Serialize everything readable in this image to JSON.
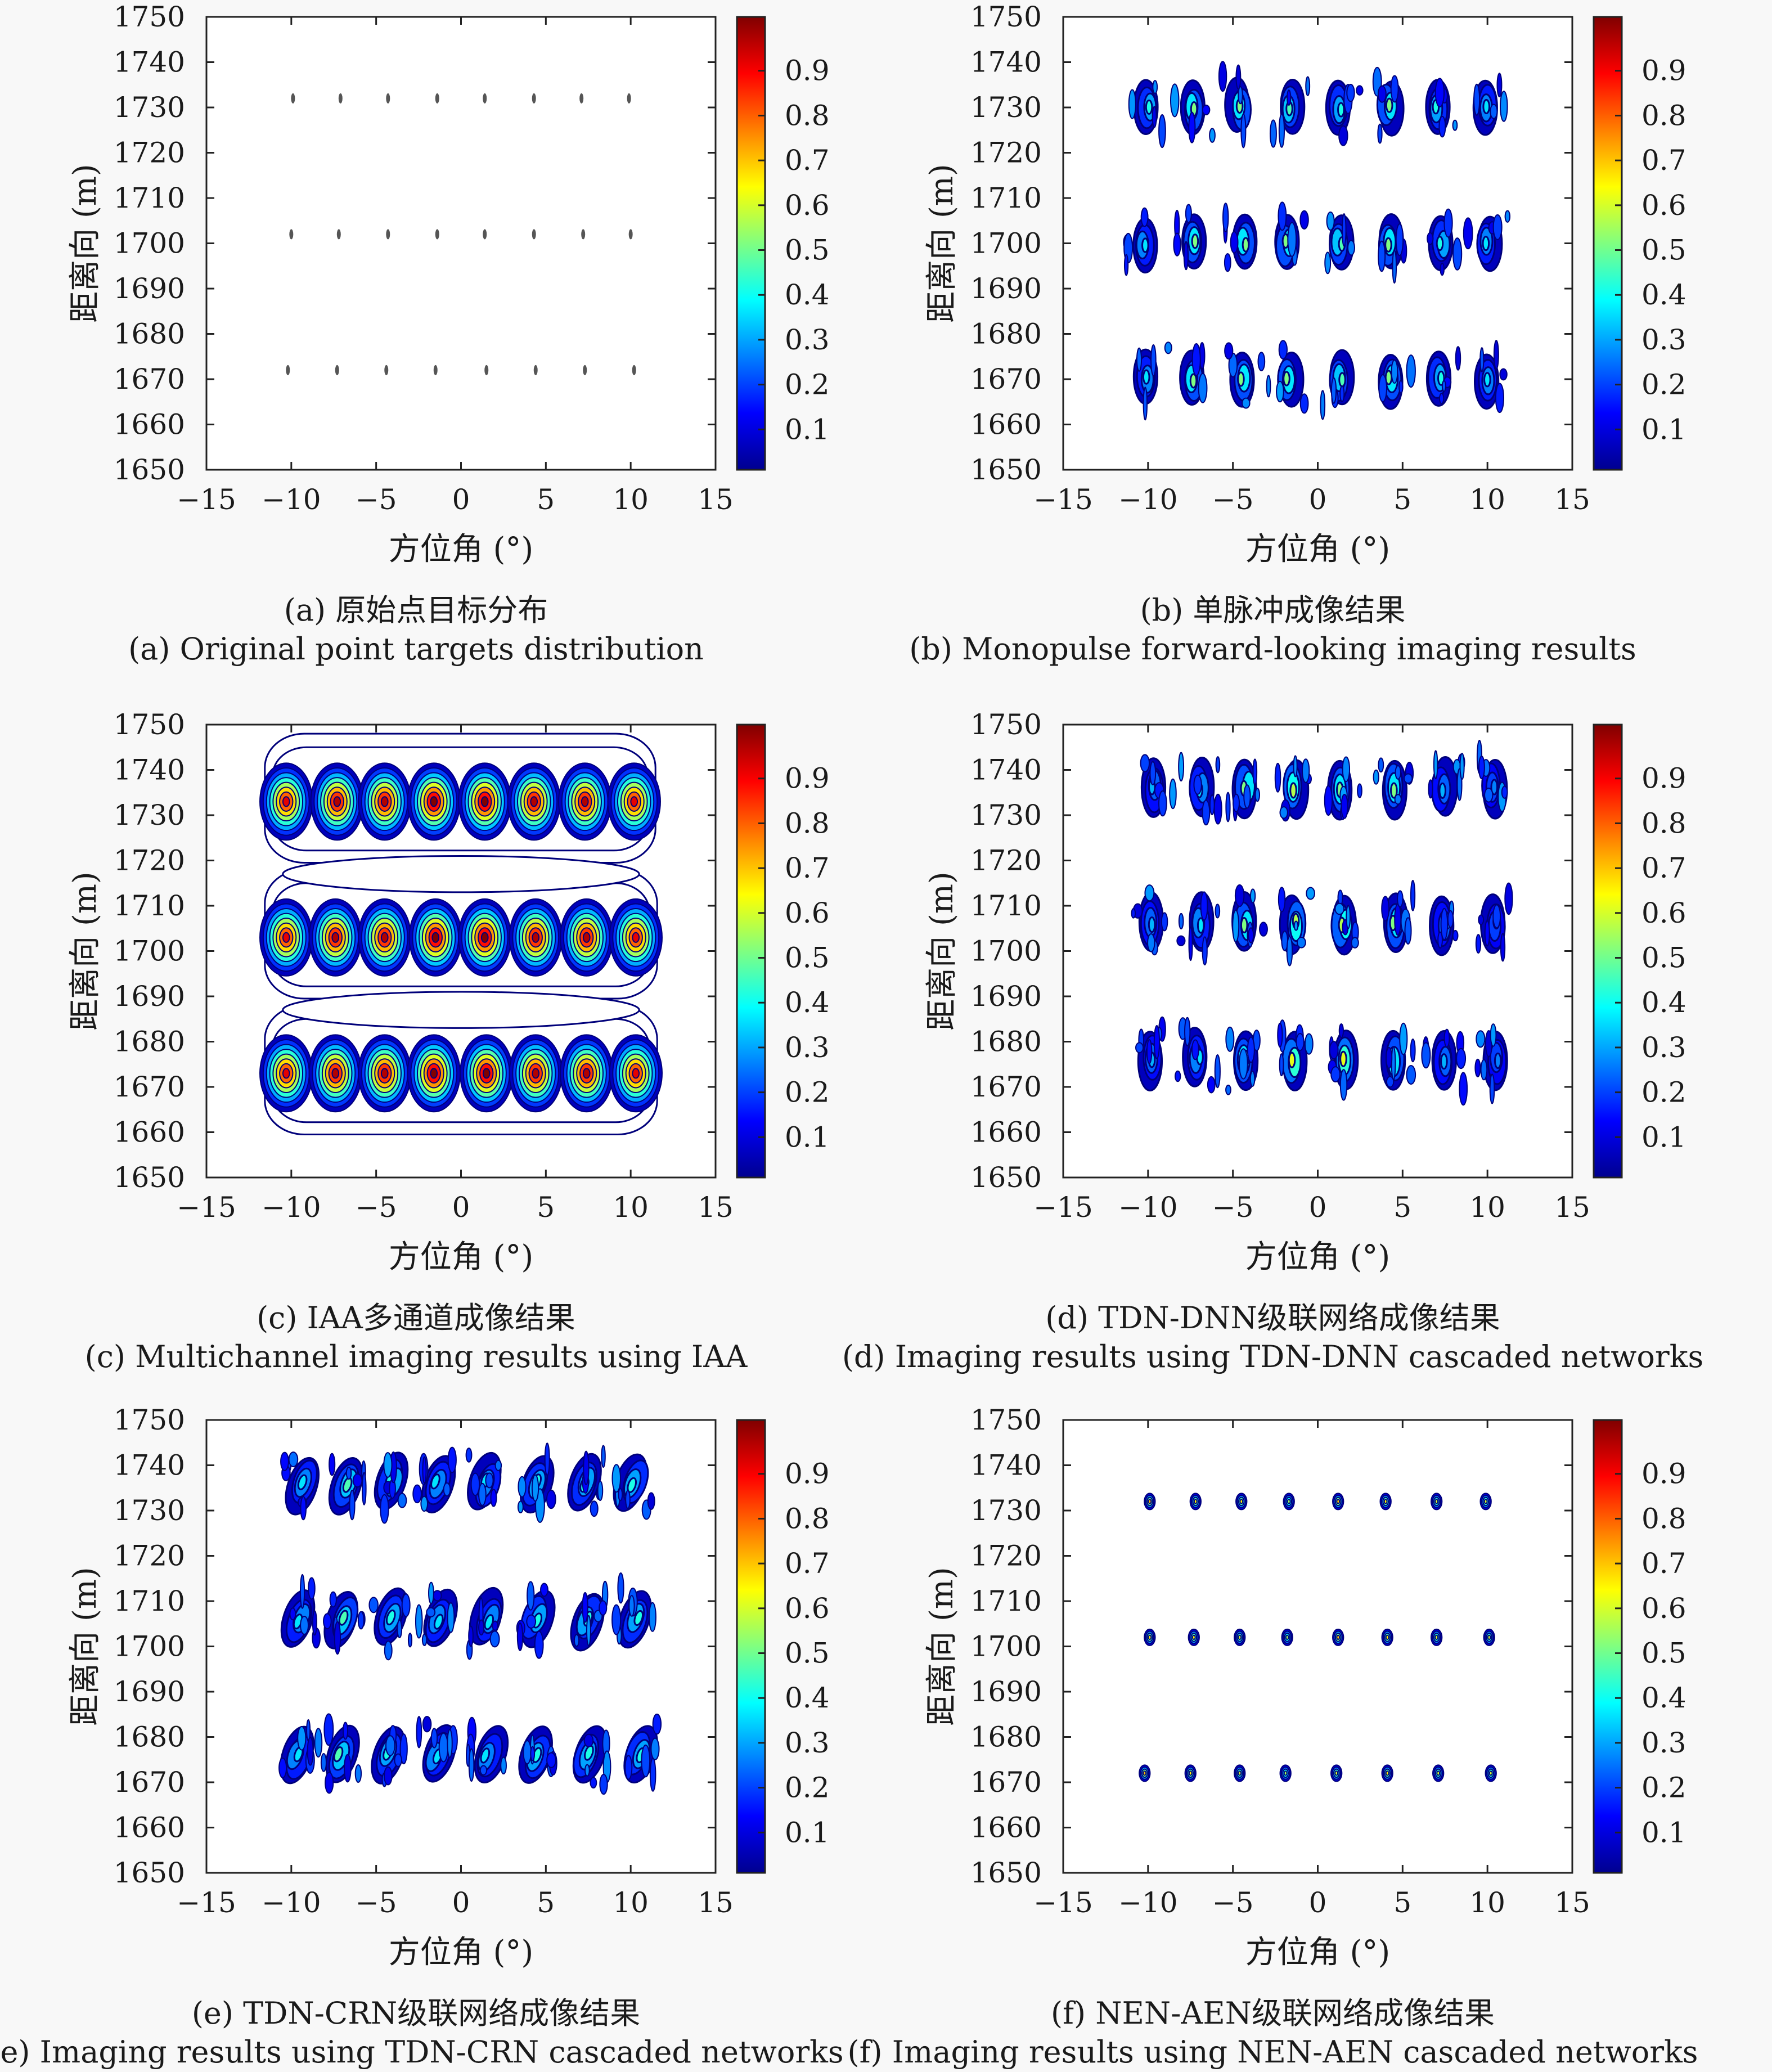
{
  "figure": {
    "colormap": [
      "#00008f",
      "#0000ff",
      "#0080ff",
      "#00ffff",
      "#80ff80",
      "#ffff00",
      "#ff8000",
      "#ff0000",
      "#800000"
    ],
    "contour_color": "#00007a"
  },
  "chart_data": [
    {
      "type": "scatter",
      "caption_cn": "(a) 原始点目标分布",
      "caption_en": "(a) Original point targets distribution",
      "xlabel": "方位角 (°)",
      "ylabel": "距离向 (m)",
      "xlim": [
        -15,
        15
      ],
      "ylim": [
        1650,
        1750
      ],
      "xticks": [
        "−15",
        "−10",
        "−5",
        "0",
        "5",
        "10",
        "15"
      ],
      "yticks": [
        "1650",
        "1660",
        "1670",
        "1680",
        "1690",
        "1700",
        "1710",
        "1720",
        "1730",
        "1740",
        "1750"
      ],
      "colorbar_ticks": [
        "0.1",
        "0.2",
        "0.3",
        "0.4",
        "0.5",
        "0.6",
        "0.7",
        "0.8",
        "0.9"
      ],
      "style": "point",
      "series": [
        {
          "y": 1732,
          "x": [
            -9.9,
            -7.1,
            -4.3,
            -1.4,
            1.4,
            4.3,
            7.1,
            9.9
          ]
        },
        {
          "y": 1702,
          "x": [
            -10.0,
            -7.2,
            -4.3,
            -1.4,
            1.4,
            4.3,
            7.2,
            10.0
          ]
        },
        {
          "y": 1672,
          "x": [
            -10.2,
            -7.3,
            -4.4,
            -1.5,
            1.5,
            4.4,
            7.3,
            10.2
          ]
        }
      ]
    },
    {
      "type": "heatmap",
      "caption_cn": "(b) 单脉冲成像结果",
      "caption_en": "(b) Monopulse forward-looking imaging results",
      "xlabel": "方位角 (°)",
      "ylabel": "距离向 (m)",
      "xlim": [
        -15,
        15
      ],
      "ylim": [
        1650,
        1750
      ],
      "xticks": [
        "−15",
        "−10",
        "−5",
        "0",
        "5",
        "10",
        "15"
      ],
      "yticks": [
        "1650",
        "1660",
        "1670",
        "1680",
        "1690",
        "1700",
        "1710",
        "1720",
        "1730",
        "1740",
        "1750"
      ],
      "colorbar_ticks": [
        "0.1",
        "0.2",
        "0.3",
        "0.4",
        "0.5",
        "0.6",
        "0.7",
        "0.8",
        "0.9"
      ],
      "style": "monopulse",
      "series": [
        {
          "y": 1730,
          "x": [
            -10.0,
            -7.3,
            -4.6,
            -1.6,
            1.3,
            4.2,
            7.1,
            10.0
          ],
          "peak": [
            0.35,
            0.45,
            0.45,
            0.4,
            0.35,
            0.45,
            0.35,
            0.3
          ]
        },
        {
          "y": 1700,
          "x": [
            -10.3,
            -7.3,
            -4.4,
            -1.8,
            1.3,
            4.2,
            7.3,
            10.0
          ],
          "peak": [
            0.3,
            0.45,
            0.45,
            0.45,
            0.4,
            0.45,
            0.35,
            0.3
          ]
        },
        {
          "y": 1670,
          "x": [
            -10.0,
            -7.3,
            -4.5,
            -1.7,
            1.4,
            4.3,
            7.2,
            10.0
          ],
          "peak": [
            0.3,
            0.45,
            0.45,
            0.45,
            0.4,
            0.45,
            0.35,
            0.3
          ]
        }
      ]
    },
    {
      "type": "heatmap",
      "caption_cn": "(c) IAA多通道成像结果",
      "caption_en": "(c) Multichannel imaging results using IAA",
      "xlabel": "方位角 (°)",
      "ylabel": "距离向 (m)",
      "xlim": [
        -15,
        15
      ],
      "ylim": [
        1650,
        1750
      ],
      "xticks": [
        "−15",
        "−10",
        "−5",
        "0",
        "5",
        "10",
        "15"
      ],
      "yticks": [
        "1650",
        "1660",
        "1670",
        "1680",
        "1690",
        "1700",
        "1710",
        "1720",
        "1730",
        "1740",
        "1750"
      ],
      "colorbar_ticks": [
        "0.1",
        "0.2",
        "0.3",
        "0.4",
        "0.5",
        "0.6",
        "0.7",
        "0.8",
        "0.9"
      ],
      "style": "iaa",
      "series": [
        {
          "y": 1733,
          "x": [
            -10.3,
            -7.3,
            -4.5,
            -1.6,
            1.4,
            4.3,
            7.3,
            10.2
          ],
          "peak": [
            0.85,
            0.9,
            0.9,
            0.95,
            0.95,
            0.9,
            0.9,
            0.85
          ]
        },
        {
          "y": 1703,
          "x": [
            -10.3,
            -7.4,
            -4.5,
            -1.5,
            1.4,
            4.4,
            7.4,
            10.3
          ],
          "peak": [
            0.85,
            0.9,
            0.9,
            0.95,
            0.95,
            0.9,
            0.9,
            0.85
          ]
        },
        {
          "y": 1673,
          "x": [
            -10.3,
            -7.4,
            -4.5,
            -1.6,
            1.5,
            4.4,
            7.4,
            10.3
          ],
          "peak": [
            0.85,
            0.9,
            0.9,
            0.95,
            0.95,
            0.9,
            0.9,
            0.85
          ]
        }
      ]
    },
    {
      "type": "heatmap",
      "caption_cn": "(d) TDN-DNN级联网络成像结果",
      "caption_en": "(d) Imaging results using TDN-DNN cascaded networks",
      "xlabel": "方位角 (°)",
      "ylabel": "距离向 (m)",
      "xlim": [
        -15,
        15
      ],
      "ylim": [
        1650,
        1750
      ],
      "xticks": [
        "−15",
        "−10",
        "−5",
        "0",
        "5",
        "10",
        "15"
      ],
      "yticks": [
        "1650",
        "1660",
        "1670",
        "1680",
        "1690",
        "1700",
        "1710",
        "1720",
        "1730",
        "1740",
        "1750"
      ],
      "colorbar_ticks": [
        "0.1",
        "0.2",
        "0.3",
        "0.4",
        "0.5",
        "0.6",
        "0.7",
        "0.8",
        "0.9"
      ],
      "style": "dnn",
      "series": [
        {
          "y": 1736,
          "x": [
            -9.7,
            -6.9,
            -4.2,
            -1.4,
            1.4,
            4.4,
            7.4,
            10.3
          ],
          "peak": [
            0.25,
            0.3,
            0.45,
            0.5,
            0.45,
            0.45,
            0.25,
            0.2
          ]
        },
        {
          "y": 1706,
          "x": [
            -9.8,
            -6.9,
            -4.3,
            -1.4,
            1.5,
            4.5,
            7.4,
            10.4
          ],
          "peak": [
            0.25,
            0.3,
            0.45,
            0.5,
            0.5,
            0.45,
            0.25,
            0.2
          ]
        },
        {
          "y": 1676,
          "x": [
            -9.9,
            -7.1,
            -4.3,
            -1.5,
            1.5,
            4.5,
            7.5,
            10.5
          ],
          "peak": [
            0.25,
            0.3,
            0.45,
            0.55,
            0.55,
            0.45,
            0.25,
            0.2
          ]
        }
      ]
    },
    {
      "type": "heatmap",
      "caption_cn": "(e) TDN-CRN级联网络成像结果",
      "caption_en": "(e) Imaging results using TDN-CRN cascaded networks",
      "xlabel": "方位角 (°)",
      "ylabel": "距离向 (m)",
      "xlim": [
        -15,
        15
      ],
      "ylim": [
        1650,
        1750
      ],
      "xticks": [
        "−15",
        "−10",
        "−5",
        "0",
        "5",
        "10",
        "15"
      ],
      "yticks": [
        "1650",
        "1660",
        "1670",
        "1680",
        "1690",
        "1700",
        "1710",
        "1720",
        "1730",
        "1740",
        "1750"
      ],
      "colorbar_ticks": [
        "0.1",
        "0.2",
        "0.3",
        "0.4",
        "0.5",
        "0.6",
        "0.7",
        "0.8",
        "0.9"
      ],
      "style": "crn",
      "series": [
        {
          "y": 1736,
          "x": [
            -9.4,
            -6.8,
            -4.1,
            -1.4,
            1.5,
            4.4,
            7.4,
            10.1
          ],
          "peak": [
            0.3,
            0.4,
            0.35,
            0.3,
            0.3,
            0.35,
            0.35,
            0.35
          ]
        },
        {
          "y": 1706,
          "x": [
            -9.5,
            -6.9,
            -4.1,
            -1.3,
            1.6,
            4.4,
            7.4,
            10.3
          ],
          "peak": [
            0.3,
            0.4,
            0.35,
            0.3,
            0.3,
            0.35,
            0.35,
            0.35
          ]
        },
        {
          "y": 1676,
          "x": [
            -9.6,
            -7.1,
            -4.2,
            -1.4,
            1.6,
            4.5,
            7.5,
            10.5
          ],
          "peak": [
            0.3,
            0.4,
            0.35,
            0.3,
            0.3,
            0.35,
            0.35,
            0.35
          ]
        }
      ]
    },
    {
      "type": "heatmap",
      "caption_cn": "(f) NEN-AEN级联网络成像结果",
      "caption_en": "(f) Imaging results using NEN-AEN cascaded networks",
      "xlabel": "方位角 (°)",
      "ylabel": "距离向 (m)",
      "xlim": [
        -15,
        15
      ],
      "ylim": [
        1650,
        1750
      ],
      "xticks": [
        "−15",
        "−10",
        "−5",
        "0",
        "5",
        "10",
        "15"
      ],
      "yticks": [
        "1650",
        "1660",
        "1670",
        "1680",
        "1690",
        "1700",
        "1710",
        "1720",
        "1730",
        "1740",
        "1750"
      ],
      "colorbar_ticks": [
        "0.1",
        "0.2",
        "0.3",
        "0.4",
        "0.5",
        "0.6",
        "0.7",
        "0.8",
        "0.9"
      ],
      "style": "aen",
      "series": [
        {
          "y": 1732,
          "x": [
            -9.9,
            -7.2,
            -4.5,
            -1.7,
            1.2,
            4.0,
            7.0,
            9.9
          ],
          "peak": [
            0.6,
            0.55,
            0.55,
            0.45,
            0.6,
            0.55,
            0.5,
            0.5
          ]
        },
        {
          "y": 1702,
          "x": [
            -9.9,
            -7.3,
            -4.6,
            -1.8,
            1.2,
            4.1,
            7.0,
            10.1
          ],
          "peak": [
            0.55,
            0.55,
            0.5,
            0.45,
            0.6,
            0.55,
            0.5,
            0.5
          ]
        },
        {
          "y": 1672,
          "x": [
            -10.2,
            -7.5,
            -4.6,
            -1.9,
            1.1,
            4.1,
            7.1,
            10.2
          ],
          "peak": [
            0.6,
            0.55,
            0.5,
            0.45,
            0.5,
            0.55,
            0.5,
            0.5
          ]
        }
      ]
    }
  ]
}
